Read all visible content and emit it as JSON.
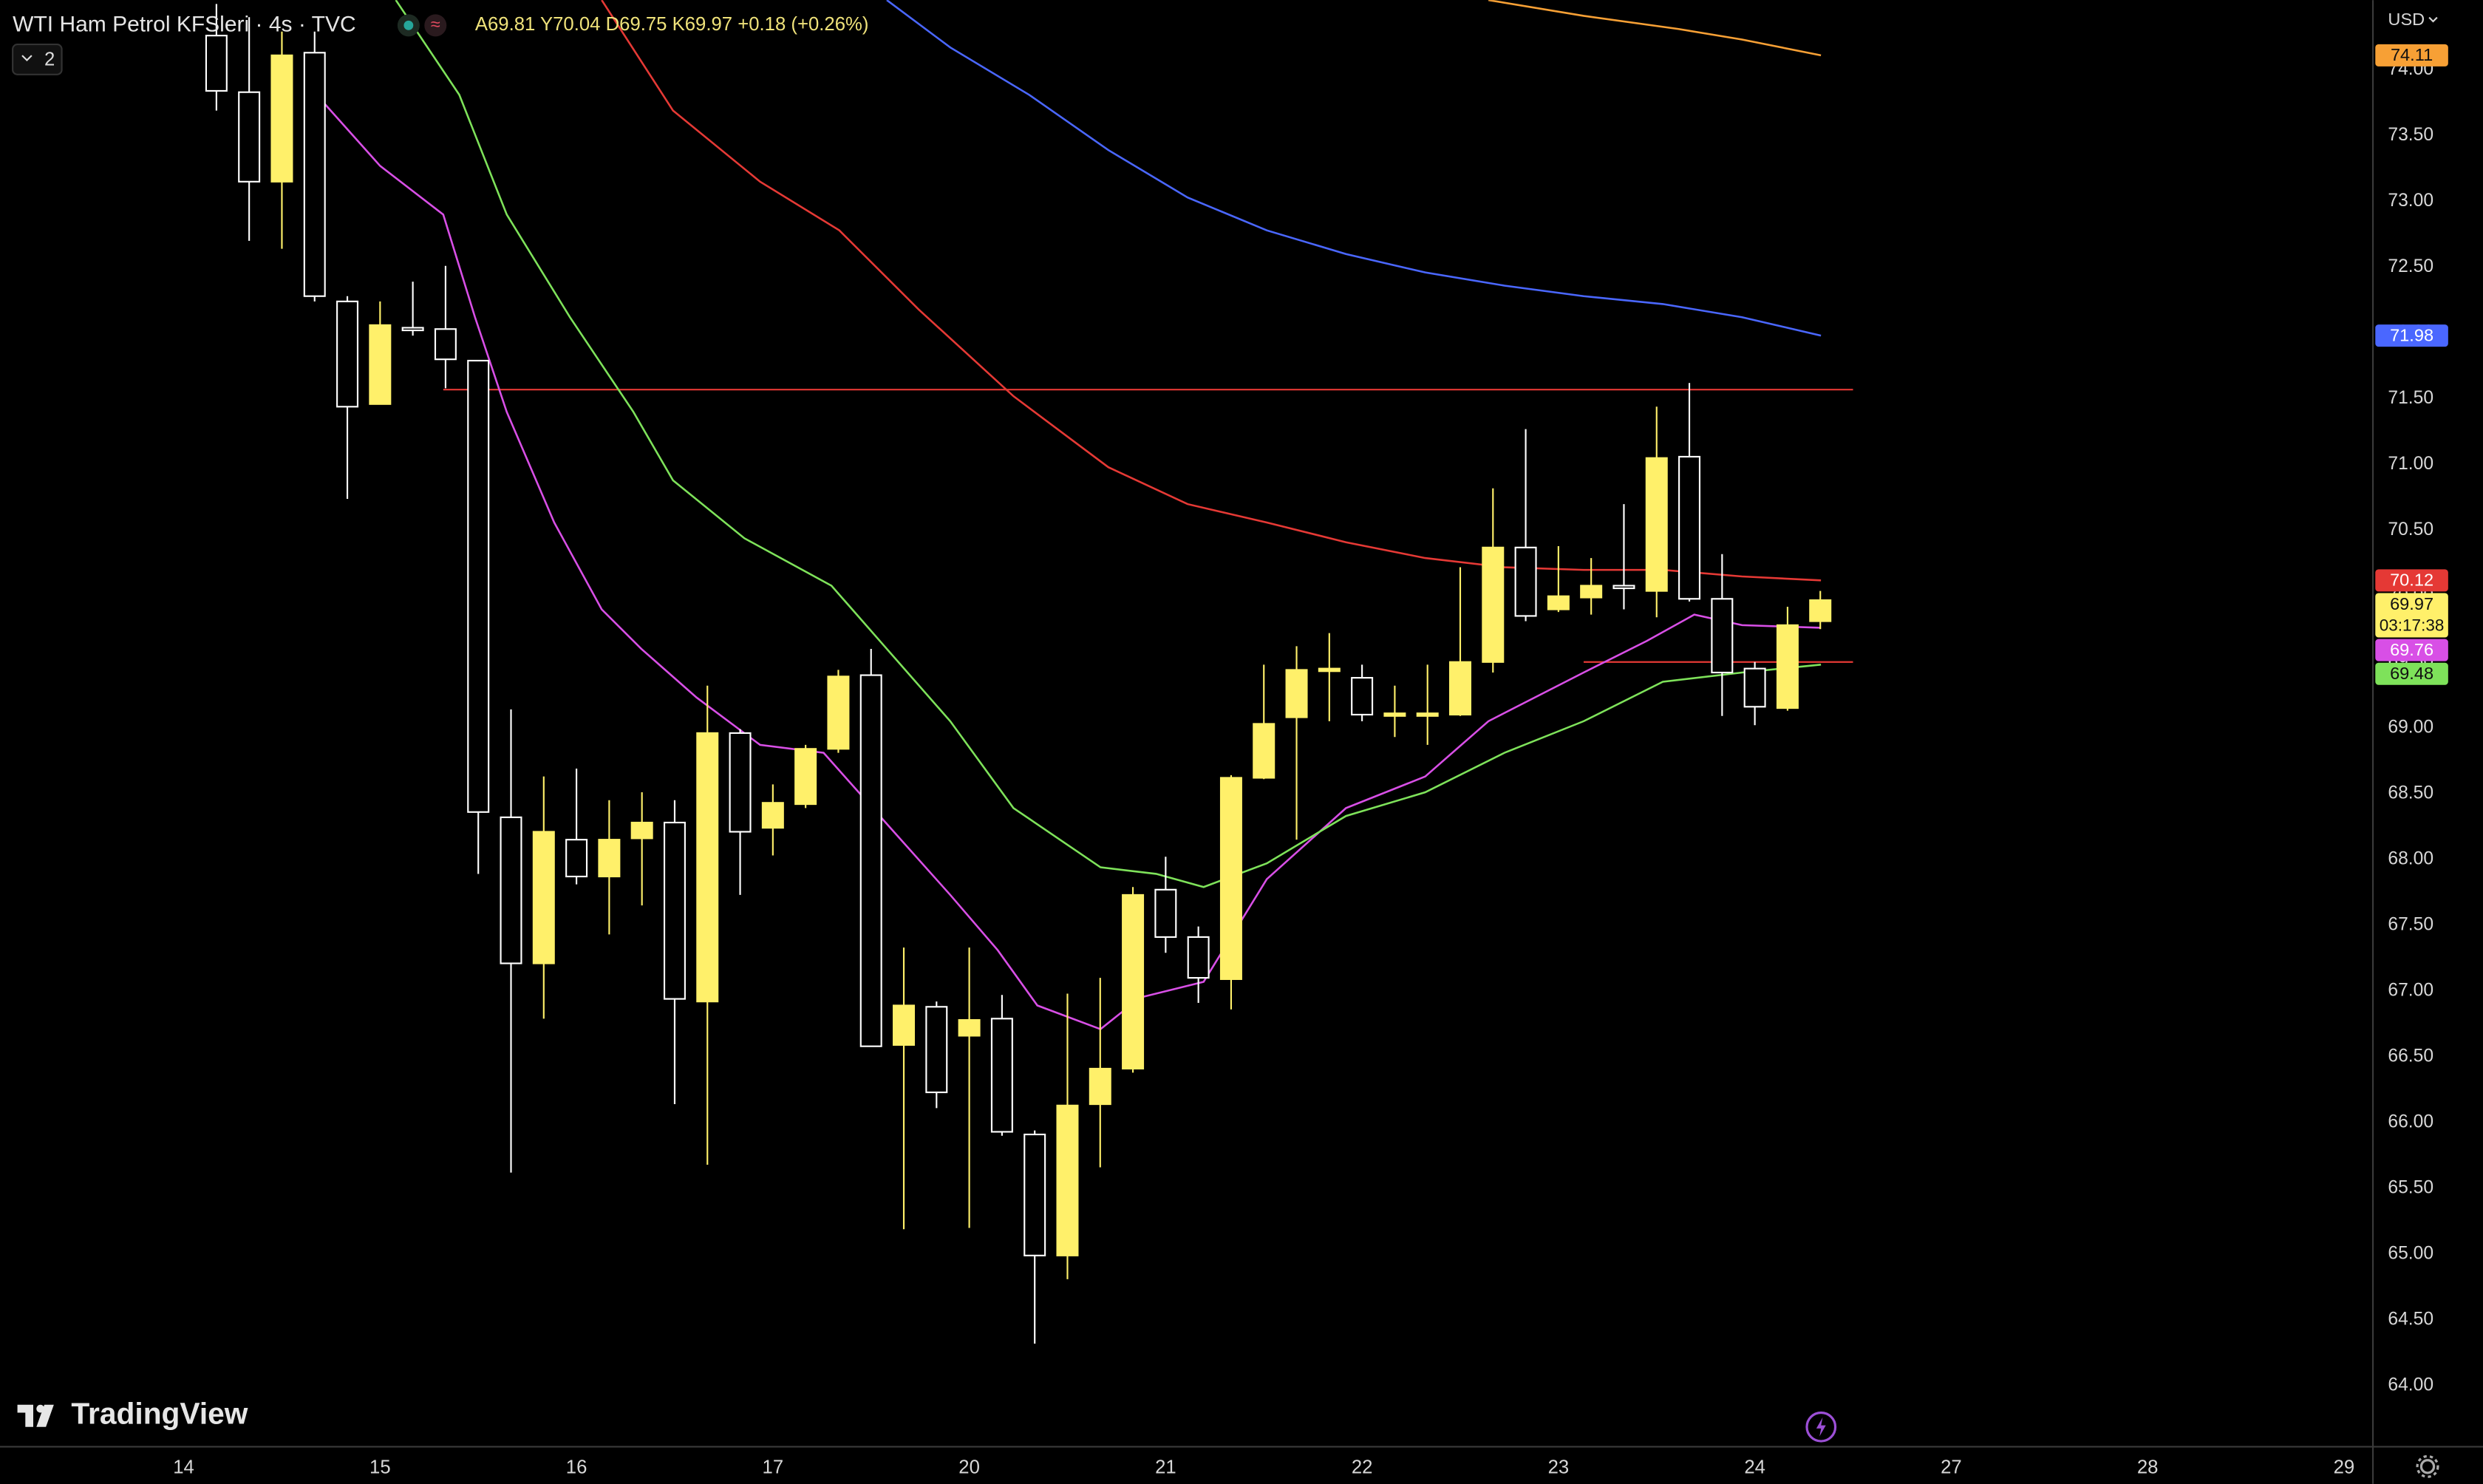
{
  "header": {
    "title": "WTI Ham Petrol KFSleri · 4s · TVC",
    "ohlc": "A69.81 Y70.04 D69.75 K69.97 +0.18 (+0.26%)",
    "indicator_count": "2",
    "currency": "USD",
    "logo": "TradingView"
  },
  "chart_data": {
    "type": "candlestick",
    "x": [
      1,
      2,
      3,
      4,
      5,
      6,
      7,
      8,
      9,
      10,
      11,
      12,
      13,
      14,
      15,
      16,
      17,
      18,
      19,
      20,
      21,
      22,
      23,
      24,
      25,
      26,
      27,
      28,
      29,
      30,
      31,
      32,
      33,
      34,
      35,
      36,
      37,
      38,
      39,
      40,
      41,
      42,
      43,
      44,
      45,
      46,
      47,
      48,
      49,
      50
    ],
    "open": [
      74.26,
      73.83,
      73.15,
      74.13,
      72.24,
      71.46,
      72.04,
      72.03,
      71.79,
      68.32,
      67.21,
      68.15,
      67.87,
      68.16,
      68.28,
      66.92,
      68.96,
      68.24,
      68.42,
      68.84,
      69.4,
      66.59,
      66.88,
      66.66,
      66.79,
      65.91,
      64.99,
      66.14,
      66.41,
      67.77,
      67.41,
      67.09,
      68.62,
      69.08,
      69.43,
      69.38,
      69.09,
      69.09,
      69.1,
      69.5,
      70.37,
      69.9,
      69.99,
      70.08,
      70.04,
      71.06,
      69.98,
      69.45,
      69.15,
      69.81
    ],
    "high": [
      74.5,
      74.4,
      74.29,
      74.29,
      72.28,
      72.24,
      72.39,
      72.51,
      71.79,
      69.14,
      68.63,
      68.69,
      68.45,
      68.51,
      68.45,
      69.32,
      68.99,
      68.57,
      68.87,
      69.44,
      69.6,
      67.33,
      66.92,
      67.33,
      66.97,
      65.94,
      66.98,
      67.1,
      67.79,
      68.02,
      67.49,
      68.64,
      69.48,
      69.62,
      69.72,
      69.48,
      69.32,
      69.48,
      70.22,
      70.82,
      71.27,
      70.38,
      70.29,
      70.7,
      71.44,
      71.62,
      70.32,
      69.5,
      69.92,
      70.04
    ],
    "low": [
      73.69,
      72.7,
      72.64,
      72.24,
      70.74,
      71.46,
      71.98,
      71.58,
      67.89,
      65.62,
      66.79,
      67.81,
      67.43,
      67.65,
      66.14,
      65.68,
      67.73,
      68.03,
      68.39,
      68.81,
      66.58,
      65.19,
      66.11,
      65.2,
      65.9,
      64.32,
      64.81,
      65.66,
      66.38,
      67.29,
      66.91,
      66.86,
      68.61,
      68.15,
      69.05,
      69.05,
      68.93,
      68.87,
      69.09,
      69.42,
      69.81,
      69.88,
      69.86,
      69.9,
      69.84,
      69.96,
      69.09,
      69.02,
      69.13,
      69.75
    ],
    "close": [
      73.84,
      73.15,
      74.11,
      72.28,
      71.44,
      72.06,
      72.02,
      71.8,
      68.36,
      67.21,
      68.21,
      67.87,
      68.15,
      68.28,
      66.94,
      68.96,
      68.21,
      68.43,
      68.84,
      69.39,
      66.58,
      66.89,
      66.23,
      66.78,
      65.93,
      64.99,
      66.13,
      66.41,
      67.73,
      67.41,
      67.1,
      68.62,
      69.03,
      69.44,
      69.45,
      69.1,
      69.11,
      69.11,
      69.5,
      70.37,
      69.85,
      70.0,
      70.08,
      70.06,
      71.05,
      69.98,
      69.42,
      69.16,
      69.78,
      69.97
    ],
    "up_color": "#fff06a",
    "down_color": "#ffffff",
    "countdown": "03:17:38",
    "series": [
      {
        "color": "#f7a035",
        "x": [
          39.86,
          42.77,
          45.67,
          47.61,
          50.02
        ],
        "values": [
          74.53,
          74.41,
          74.31,
          74.23,
          74.11
        ]
      },
      {
        "color": "#4a67ff",
        "x": [
          21.48,
          23.42,
          25.83,
          28.25,
          30.67,
          33.09,
          35.51,
          37.93,
          40.35,
          42.77,
          45.19,
          47.61,
          50.02
        ],
        "values": [
          74.53,
          74.17,
          73.81,
          73.39,
          73.03,
          72.78,
          72.6,
          72.46,
          72.36,
          72.28,
          72.22,
          72.12,
          71.98
        ]
      },
      {
        "color": "#e53935",
        "x": [
          12.77,
          14.95,
          17.61,
          20.03,
          22.45,
          25.35,
          28.25,
          30.67,
          33.09,
          35.51,
          37.93,
          40.35,
          42.77,
          45.19,
          47.61,
          50.02
        ],
        "values": [
          74.53,
          73.69,
          73.15,
          72.78,
          72.18,
          71.52,
          70.98,
          70.7,
          70.56,
          70.41,
          70.29,
          70.22,
          70.2,
          70.2,
          70.15,
          70.12
        ]
      },
      {
        "color": "#d84fe6",
        "x": [
          4.06,
          6.0,
          7.93,
          8.9,
          9.87,
          11.32,
          12.77,
          13.98,
          15.67,
          17.61,
          19.55,
          21.48,
          23.42,
          24.87,
          26.08,
          28.01,
          29.22,
          31.16,
          33.09,
          35.51,
          37.93,
          39.86,
          42.77,
          44.7,
          46.15,
          47.61,
          50.02
        ],
        "values": [
          73.81,
          73.27,
          72.9,
          72.12,
          71.4,
          70.56,
          69.9,
          69.6,
          69.23,
          68.87,
          68.81,
          68.27,
          67.73,
          67.31,
          66.89,
          66.71,
          66.95,
          67.07,
          67.85,
          68.39,
          68.63,
          69.05,
          69.42,
          69.66,
          69.86,
          69.78,
          69.76
        ]
      },
      {
        "color": "#7ee25a",
        "x": [
          6.48,
          8.42,
          9.87,
          11.8,
          13.74,
          14.95,
          17.13,
          19.79,
          21.48,
          23.42,
          25.35,
          28.01,
          29.71,
          31.16,
          33.09,
          35.51,
          37.93,
          40.35,
          42.77,
          45.19,
          47.61,
          50.02
        ],
        "values": [
          74.53,
          73.81,
          72.9,
          72.12,
          71.4,
          70.88,
          70.44,
          70.08,
          69.6,
          69.05,
          68.39,
          67.94,
          67.89,
          67.79,
          67.97,
          68.33,
          68.51,
          68.81,
          69.05,
          69.35,
          69.42,
          69.48
        ]
      }
    ],
    "levels": [
      {
        "value": 71.57,
        "color": "#e53935",
        "from": 7.93,
        "to": 51
      },
      {
        "value": 69.5,
        "color": "#e53935",
        "from": 42.77,
        "to": 51
      }
    ],
    "xlim": [
      -5.612,
      66.86
    ],
    "xticks": [
      {
        "value": 0,
        "label": "14"
      },
      {
        "value": 6,
        "label": "15"
      },
      {
        "value": 12,
        "label": "16"
      },
      {
        "value": 18,
        "label": "17"
      },
      {
        "value": 24,
        "label": "20"
      },
      {
        "value": 30,
        "label": "21"
      },
      {
        "value": 36,
        "label": "22"
      },
      {
        "value": 42,
        "label": "23"
      },
      {
        "value": 48,
        "label": "24"
      },
      {
        "value": 54,
        "label": "27"
      },
      {
        "value": 60,
        "label": "28"
      },
      {
        "value": 66,
        "label": "29"
      }
    ],
    "ylim": [
      63.543,
      74.53
    ],
    "yticks": [
      {
        "value": 64,
        "label": "64.00"
      },
      {
        "value": 64.5,
        "label": "64.50"
      },
      {
        "value": 65,
        "label": "65.00"
      },
      {
        "value": 65.5,
        "label": "65.50"
      },
      {
        "value": 66,
        "label": "66.00"
      },
      {
        "value": 66.5,
        "label": "66.50"
      },
      {
        "value": 67,
        "label": "67.00"
      },
      {
        "value": 67.5,
        "label": "67.50"
      },
      {
        "value": 68,
        "label": "68.00"
      },
      {
        "value": 68.5,
        "label": "68.50"
      },
      {
        "value": 69,
        "label": "69.00"
      },
      {
        "value": 69.5,
        "label": "69.50"
      },
      {
        "value": 70,
        "label": "70.00"
      },
      {
        "value": 70.5,
        "label": "70.50"
      },
      {
        "value": 71,
        "label": "71.00"
      },
      {
        "value": 71.5,
        "label": "71.50"
      },
      {
        "value": 72,
        "label": "72.00"
      },
      {
        "value": 72.5,
        "label": "72.50"
      },
      {
        "value": 73,
        "label": "73.00"
      },
      {
        "value": 73.5,
        "label": "73.50"
      },
      {
        "value": 74,
        "label": "74.00"
      }
    ],
    "grid": false
  }
}
